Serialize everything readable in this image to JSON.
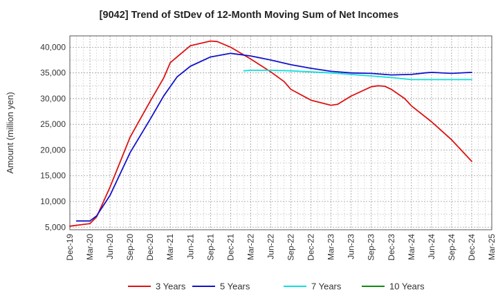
{
  "chart_data": {
    "type": "line",
    "title": "[9042]  Trend of StDev of 12-Month Moving Sum of Net Incomes",
    "ylabel": "Amount (million yen)",
    "xlabel": "",
    "ylim": [
      4500,
      42200
    ],
    "yticks": [
      5000,
      10000,
      15000,
      20000,
      25000,
      30000,
      35000,
      40000
    ],
    "ytick_labels": [
      "5,000",
      "10,000",
      "15,000",
      "20,000",
      "25,000",
      "30,000",
      "35,000",
      "40,000"
    ],
    "xrange": [
      "Dec-19",
      "Mar-25"
    ],
    "xtick_labels": [
      "Dec-19",
      "Mar-20",
      "Jun-20",
      "Sep-20",
      "Dec-20",
      "Mar-21",
      "Jun-21",
      "Sep-21",
      "Dec-21",
      "Mar-22",
      "Jun-22",
      "Sep-22",
      "Dec-22",
      "Mar-23",
      "Jun-23",
      "Sep-23",
      "Dec-23",
      "Mar-24",
      "Jun-24",
      "Sep-24",
      "Dec-24",
      "Mar-25"
    ],
    "grid": true,
    "legend_position": "bottom",
    "series": [
      {
        "name": "3 Years",
        "color": "#dd1111",
        "x": [
          "Dec-19",
          "Mar-20",
          "Apr-20",
          "Jun-20",
          "Sep-20",
          "Dec-20",
          "Feb-21",
          "Mar-21",
          "Jun-21",
          "Sep-21",
          "Oct-21",
          "Dec-21",
          "Mar-22",
          "Jun-22",
          "Aug-22",
          "Sep-22",
          "Dec-22",
          "Mar-23",
          "Apr-23",
          "Jun-23",
          "Sep-23",
          "Oct-23",
          "Nov-23",
          "Dec-23",
          "Feb-24",
          "Mar-24",
          "Jun-24",
          "Sep-24",
          "Dec-24"
        ],
        "values": [
          5200,
          5700,
          7000,
          12800,
          22500,
          29500,
          34000,
          37000,
          40300,
          41200,
          41100,
          40000,
          37700,
          35200,
          33300,
          31800,
          29700,
          28700,
          28900,
          30500,
          32300,
          32500,
          32400,
          31800,
          30000,
          28600,
          25500,
          22000,
          17800
        ]
      },
      {
        "name": "5 Years",
        "color": "#1111cc",
        "x": [
          "Jan-20",
          "Mar-20",
          "Apr-20",
          "Jun-20",
          "Sep-20",
          "Dec-20",
          "Feb-21",
          "Apr-21",
          "Jun-21",
          "Sep-21",
          "Dec-21",
          "Mar-22",
          "Jun-22",
          "Sep-22",
          "Dec-22",
          "Mar-23",
          "Jun-23",
          "Sep-23",
          "Dec-23",
          "Mar-24",
          "May-24",
          "Jun-24",
          "Sep-24",
          "Dec-24"
        ],
        "values": [
          6200,
          6200,
          7200,
          11200,
          19500,
          26000,
          30500,
          34200,
          36300,
          38100,
          38800,
          38300,
          37500,
          36600,
          35900,
          35300,
          35000,
          34900,
          34600,
          34700,
          35000,
          35100,
          34900,
          35100
        ]
      },
      {
        "name": "7 Years",
        "color": "#11dddd",
        "x": [
          "Feb-22",
          "Mar-22",
          "Jun-22",
          "Sep-22",
          "Dec-22",
          "Mar-23",
          "Jun-23",
          "Sep-23",
          "Dec-23",
          "Mar-24",
          "Jun-24",
          "Sep-24",
          "Dec-24"
        ],
        "values": [
          35400,
          35500,
          35500,
          35400,
          35200,
          35000,
          34700,
          34400,
          34100,
          33700,
          33700,
          33700,
          33700
        ]
      },
      {
        "name": "10 Years",
        "color": "#118811",
        "x": [],
        "values": []
      }
    ]
  }
}
